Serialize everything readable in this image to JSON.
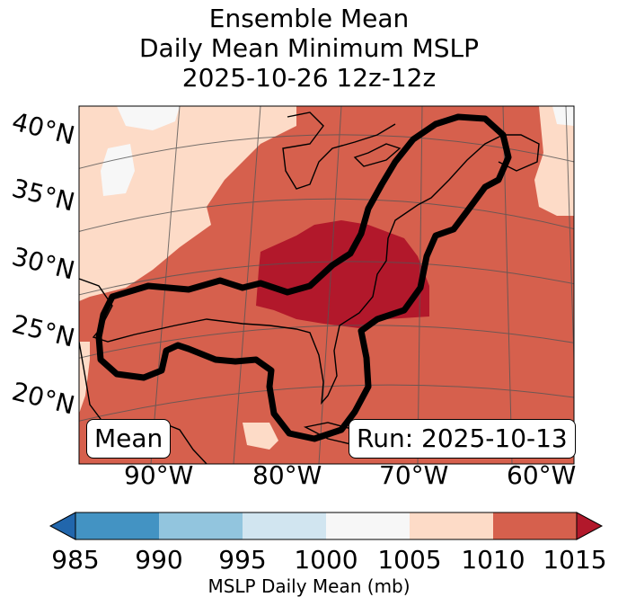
{
  "title": {
    "line1": "Ensemble Mean",
    "line2": "Daily Mean Minimum MSLP",
    "line3": "2025-10-26 12z-12z"
  },
  "map": {
    "lat_labels": [
      "40°N",
      "35°N",
      "30°N",
      "25°N",
      "20°N"
    ],
    "lon_labels": [
      "90°W",
      "80°W",
      "70°W",
      "60°W"
    ],
    "mean_box": "Mean",
    "run_box": "Run: 2025-10-13"
  },
  "colorbar": {
    "label": "MSLP Daily Mean (mb)",
    "ticks": [
      "985",
      "990",
      "995",
      "1000",
      "1005",
      "1010",
      "1015"
    ],
    "colors": {
      "under": "#2166ac",
      "c985_990": "#4393c3",
      "c990_995": "#92c5de",
      "c995_1000": "#d1e5f0",
      "c1000_1005": "#f7f7f7",
      "c1005_1010": "#fddbc7",
      "c1010_1015": "#d6604d",
      "over": "#b2182b"
    }
  }
}
